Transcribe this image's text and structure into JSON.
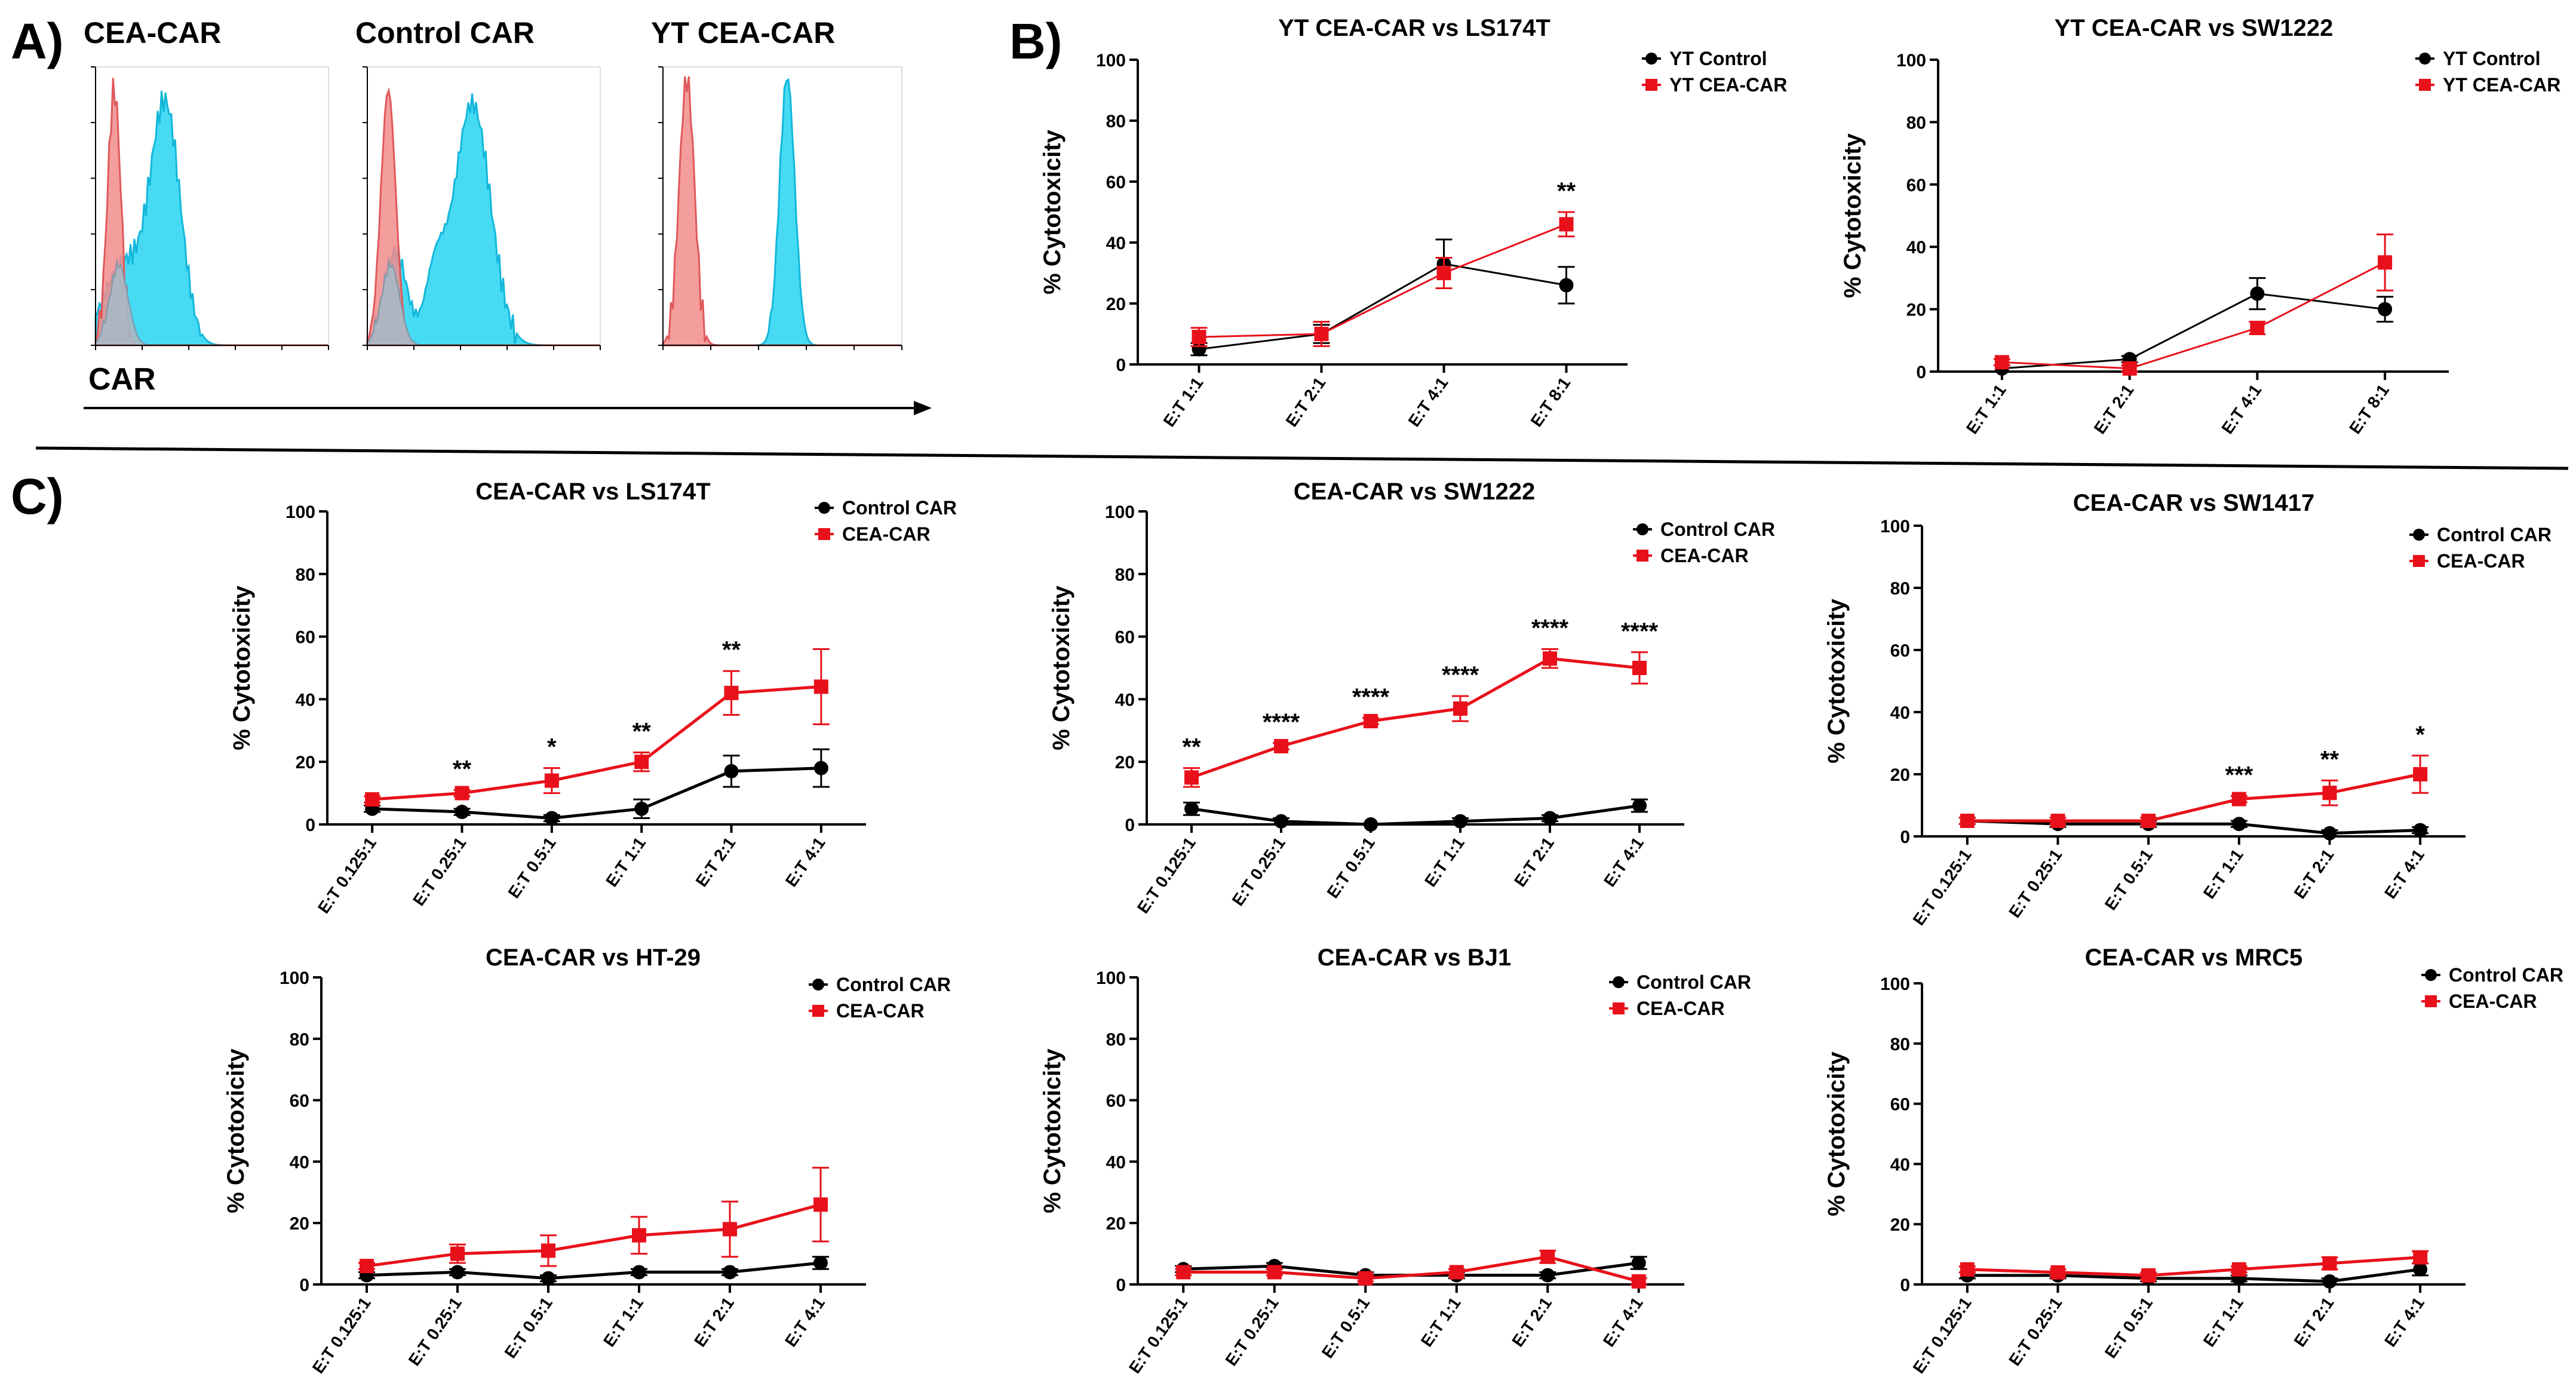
{
  "panel_labels": {
    "a": "A)",
    "b": "B)",
    "c": "C)"
  },
  "flow": {
    "histograms": [
      {
        "title": "CEA-CAR",
        "overlap": "partial"
      },
      {
        "title": "Control CAR",
        "overlap": "bimodal"
      },
      {
        "title": "YT CEA-CAR",
        "overlap": "separate"
      }
    ],
    "axis_label": "CAR",
    "colors": {
      "red": "#f28c8c",
      "cyan": "#33d6f2",
      "gray": "#a8b8c4"
    }
  },
  "chart_data": [
    {
      "type": "line",
      "title": "YT CEA-CAR vs LS174T",
      "ylabel": "% Cytotoxicity",
      "ylim": [
        0,
        100
      ],
      "yticks": [
        "0",
        "20",
        "40",
        "60",
        "80",
        "100"
      ],
      "categories": [
        "E:T 1:1",
        "E:T 2:1",
        "E:T 4:1",
        "E:T 8:1"
      ],
      "series": [
        {
          "name": "YT Control",
          "color": "#000000",
          "marker": "circle",
          "values": [
            5,
            10,
            33,
            26
          ],
          "errors": [
            2,
            3,
            8,
            6
          ]
        },
        {
          "name": "YT CEA-CAR",
          "color": "#e8101a",
          "marker": "square",
          "values": [
            9,
            10,
            30,
            46
          ],
          "errors": [
            3,
            4,
            5,
            4
          ]
        }
      ],
      "annotations": [
        "",
        "",
        "",
        "**"
      ]
    },
    {
      "type": "line",
      "title": "YT CEA-CAR vs SW1222",
      "ylabel": "% Cytotoxicity",
      "ylim": [
        0,
        100
      ],
      "yticks": [
        "0",
        "20",
        "40",
        "60",
        "80",
        "100"
      ],
      "categories": [
        "E:T 1:1",
        "E:T 2:1",
        "E:T 4:1",
        "E:T 8:1"
      ],
      "series": [
        {
          "name": "YT Control",
          "color": "#000000",
          "marker": "circle",
          "values": [
            1,
            4,
            25,
            20
          ],
          "errors": [
            1,
            1,
            5,
            4
          ]
        },
        {
          "name": "YT CEA-CAR",
          "color": "#e8101a",
          "marker": "square",
          "values": [
            3,
            1,
            14,
            35
          ],
          "errors": [
            1,
            1,
            2,
            9
          ]
        }
      ],
      "annotations": [
        "",
        "",
        "",
        ""
      ]
    },
    {
      "type": "line",
      "title": "CEA-CAR vs LS174T",
      "ylabel": "% Cytotoxicity",
      "ylim": [
        0,
        100
      ],
      "yticks": [
        "0",
        "20",
        "40",
        "60",
        "80",
        "100"
      ],
      "categories": [
        "E:T 0.125:1",
        "E:T 0.25:1",
        "E:T 0.5:1",
        "E:T 1:1",
        "E:T 2:1",
        "E:T 4:1"
      ],
      "series": [
        {
          "name": "Control CAR",
          "color": "#000000",
          "marker": "circle",
          "values": [
            5,
            4,
            2,
            5,
            17,
            18
          ],
          "errors": [
            1,
            1,
            1,
            3,
            5,
            6
          ]
        },
        {
          "name": "CEA-CAR",
          "color": "#e8101a",
          "marker": "square",
          "values": [
            8,
            10,
            14,
            20,
            42,
            44
          ],
          "errors": [
            1,
            1,
            4,
            3,
            7,
            12
          ]
        }
      ],
      "annotations": [
        "",
        "**",
        "*",
        "**",
        "**",
        ""
      ]
    },
    {
      "type": "line",
      "title": "CEA-CAR vs SW1222",
      "ylabel": "% Cytotoxicity",
      "ylim": [
        0,
        100
      ],
      "yticks": [
        "0",
        "20",
        "40",
        "60",
        "80",
        "100"
      ],
      "categories": [
        "E:T 0.125:1",
        "E:T 0.25:1",
        "E:T 0.5:1",
        "E:T 1:1",
        "E:T 2:1",
        "E:T 4:1"
      ],
      "series": [
        {
          "name": "Control CAR",
          "color": "#000000",
          "marker": "circle",
          "values": [
            5,
            1,
            0,
            1,
            2,
            6
          ],
          "errors": [
            2,
            1,
            0,
            1,
            1,
            2
          ]
        },
        {
          "name": "CEA-CAR",
          "color": "#e8101a",
          "marker": "square",
          "values": [
            15,
            25,
            33,
            37,
            53,
            50
          ],
          "errors": [
            3,
            1,
            1,
            4,
            3,
            5
          ]
        }
      ],
      "annotations": [
        "**",
        "****",
        "****",
        "****",
        "****",
        "****"
      ]
    },
    {
      "type": "line",
      "title": "CEA-CAR vs SW1417",
      "ylabel": "% Cytotoxicity",
      "ylim": [
        0,
        100
      ],
      "yticks": [
        "0",
        "20",
        "40",
        "60",
        "80",
        "100"
      ],
      "categories": [
        "E:T 0.125:1",
        "E:T 0.25:1",
        "E:T 0.5:1",
        "E:T 1:1",
        "E:T 2:1",
        "E:T 4:1"
      ],
      "series": [
        {
          "name": "Control CAR",
          "color": "#000000",
          "marker": "circle",
          "values": [
            5,
            4,
            4,
            4,
            1,
            2
          ],
          "errors": [
            1,
            1,
            1,
            1,
            1,
            1
          ]
        },
        {
          "name": "CEA-CAR",
          "color": "#e8101a",
          "marker": "square",
          "values": [
            5,
            5,
            5,
            12,
            14,
            20
          ],
          "errors": [
            1,
            1,
            1,
            1,
            4,
            6
          ]
        }
      ],
      "annotations": [
        "",
        "",
        "",
        "***",
        "**",
        "*"
      ]
    },
    {
      "type": "line",
      "title": "CEA-CAR vs HT-29",
      "ylabel": "% Cytotoxicity",
      "ylim": [
        0,
        100
      ],
      "yticks": [
        "0",
        "20",
        "40",
        "60",
        "80",
        "100"
      ],
      "categories": [
        "E:T 0.125:1",
        "E:T 0.25:1",
        "E:T 0.5:1",
        "E:T 1:1",
        "E:T 2:1",
        "E:T 4:1"
      ],
      "series": [
        {
          "name": "Control CAR",
          "color": "#000000",
          "marker": "circle",
          "values": [
            3,
            4,
            2,
            4,
            4,
            7
          ],
          "errors": [
            1,
            1,
            1,
            1,
            1,
            2
          ]
        },
        {
          "name": "CEA-CAR",
          "color": "#e8101a",
          "marker": "square",
          "values": [
            6,
            10,
            11,
            16,
            18,
            26
          ],
          "errors": [
            1,
            3,
            5,
            6,
            9,
            12
          ]
        }
      ],
      "annotations": [
        "",
        "",
        "",
        "",
        "",
        ""
      ]
    },
    {
      "type": "line",
      "title": "CEA-CAR vs BJ1",
      "ylabel": "% Cytotoxicity",
      "ylim": [
        0,
        100
      ],
      "yticks": [
        "0",
        "20",
        "40",
        "60",
        "80",
        "100"
      ],
      "categories": [
        "E:T 0.125:1",
        "E:T 0.25:1",
        "E:T 0.5:1",
        "E:T 1:1",
        "E:T 2:1",
        "E:T 4:1"
      ],
      "series": [
        {
          "name": "Control CAR",
          "color": "#000000",
          "marker": "circle",
          "values": [
            5,
            6,
            3,
            3,
            3,
            7
          ],
          "errors": [
            1,
            1,
            1,
            1,
            1,
            2
          ]
        },
        {
          "name": "CEA-CAR",
          "color": "#e8101a",
          "marker": "square",
          "values": [
            4,
            4,
            2,
            4,
            9,
            1
          ],
          "errors": [
            1,
            1,
            1,
            1,
            2,
            1
          ]
        }
      ],
      "annotations": [
        "",
        "",
        "",
        "",
        "",
        ""
      ]
    },
    {
      "type": "line",
      "title": "CEA-CAR vs MRC5",
      "ylabel": "% Cytotoxicity",
      "ylim": [
        0,
        100
      ],
      "yticks": [
        "0",
        "20",
        "40",
        "60",
        "80",
        "100"
      ],
      "categories": [
        "E:T 0.125:1",
        "E:T 0.25:1",
        "E:T 0.5:1",
        "E:T 1:1",
        "E:T 2:1",
        "E:T 4:1"
      ],
      "series": [
        {
          "name": "Control CAR",
          "color": "#000000",
          "marker": "circle",
          "values": [
            3,
            3,
            2,
            2,
            1,
            5
          ],
          "errors": [
            1,
            1,
            1,
            1,
            1,
            2
          ]
        },
        {
          "name": "CEA-CAR",
          "color": "#e8101a",
          "marker": "square",
          "values": [
            5,
            4,
            3,
            5,
            7,
            9
          ],
          "errors": [
            1,
            1,
            1,
            1,
            2,
            2
          ]
        }
      ],
      "annotations": [
        "",
        "",
        "",
        "",
        "",
        ""
      ]
    }
  ]
}
